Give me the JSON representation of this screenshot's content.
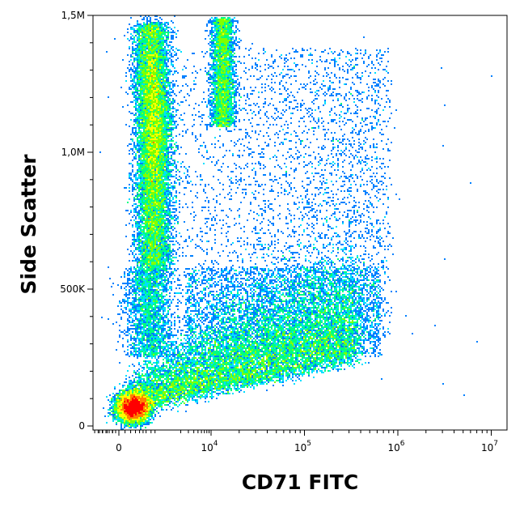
{
  "chart_data": {
    "type": "scatter",
    "style": "density-pseudocolor",
    "xlabel": "CD71 FITC",
    "ylabel": "Side Scatter",
    "x_scale": "biexponential",
    "xlim": [
      -300,
      10000000
    ],
    "ylim": [
      0,
      1500000
    ],
    "x_ticks": [
      {
        "value": 0,
        "base": "0",
        "exp": ""
      },
      {
        "value": 10000,
        "base": "10",
        "exp": "4"
      },
      {
        "value": 100000,
        "base": "10",
        "exp": "5"
      },
      {
        "value": 1000000,
        "base": "10",
        "exp": "6"
      },
      {
        "value": 10000000,
        "base": "10",
        "exp": "7"
      }
    ],
    "y_ticks": [
      {
        "value": 0,
        "label": "0"
      },
      {
        "value": 500000,
        "label": "500K"
      },
      {
        "value": 1000000,
        "label": "1,0M"
      },
      {
        "value": 1500000,
        "label": "1,5M"
      }
    ],
    "colors": [
      "#0000ff",
      "#0080ff",
      "#00e0ff",
      "#00ff80",
      "#80ff00",
      "#ffff00",
      "#ff8000",
      "#ff0000"
    ],
    "populations": [
      {
        "name": "CD71-negative high side scatter",
        "x_center": 2000,
        "y_range": [
          550000,
          1500000
        ],
        "peak_density": "high",
        "x_spread_decades": 0.12
      },
      {
        "name": "CD71-dim high side scatter",
        "x_center": 18000,
        "y_range": [
          800000,
          1500000
        ],
        "peak_density": "medium",
        "x_spread_decades": 0.05
      },
      {
        "name": "CD71-negative low side scatter",
        "x_center": 600,
        "y_center": 70000,
        "peak_density": "very high"
      },
      {
        "name": "CD71-positive low side scatter",
        "x_range": [
          3000,
          300000
        ],
        "y_range": [
          100000,
          300000
        ],
        "peak_density": "medium"
      },
      {
        "name": "scattered events",
        "x_range": [
          5000,
          400000
        ],
        "y_range": [
          300000,
          1400000
        ],
        "peak_density": "low"
      }
    ]
  }
}
